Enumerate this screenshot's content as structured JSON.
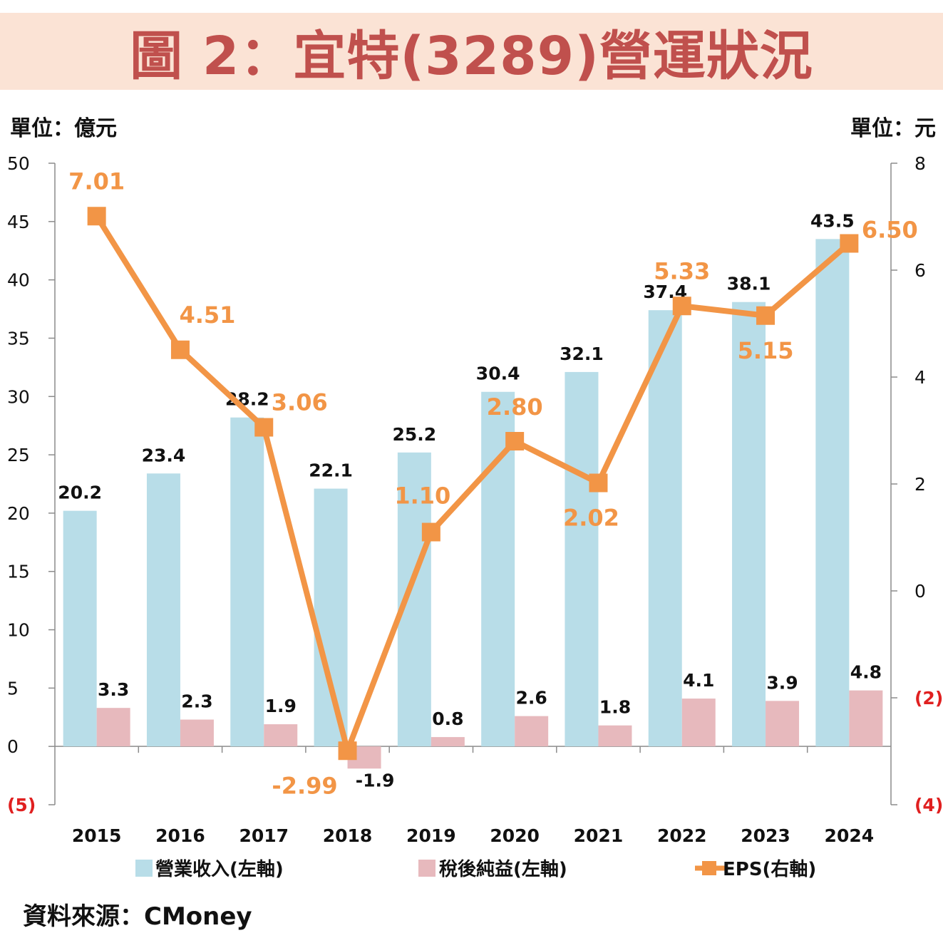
{
  "title": "圖 2：宜特(3289)營運狀況",
  "left_unit": "單位：億元",
  "right_unit": "單位：元",
  "source": "資料來源：CMoney",
  "colors": {
    "revenue": "#b8dde8",
    "net_income": "#e7b9bd",
    "eps": "#f29546",
    "negative_tick": "#e02020",
    "title": "#c0504d",
    "banner": "#fbe3d5"
  },
  "chart_data": {
    "type": "bar",
    "categories": [
      "2015",
      "2016",
      "2017",
      "2018",
      "2019",
      "2020",
      "2021",
      "2022",
      "2023",
      "2024"
    ],
    "series": [
      {
        "name": "營業收入(左軸)",
        "type": "bar",
        "axis": "left",
        "values": [
          20.2,
          23.4,
          28.2,
          22.1,
          25.2,
          30.4,
          32.1,
          37.4,
          38.1,
          43.5
        ]
      },
      {
        "name": "稅後純益(左軸)",
        "type": "bar",
        "axis": "left",
        "values": [
          3.3,
          2.3,
          1.9,
          -1.9,
          0.8,
          2.6,
          1.8,
          4.1,
          3.9,
          4.8
        ]
      },
      {
        "name": "EPS(右軸)",
        "type": "line",
        "axis": "right",
        "values": [
          7.01,
          4.51,
          3.06,
          -2.99,
          1.1,
          2.8,
          2.02,
          5.33,
          5.15,
          6.5
        ]
      }
    ],
    "bar_labels": {
      "revenue": [
        "20.2",
        "23.4",
        "28.2",
        "22.1",
        "25.2",
        "30.4",
        "32.1",
        "37.4",
        "38.1",
        "43.5"
      ],
      "net_income": [
        "3.3",
        "2.3",
        "1.9",
        "-1.9",
        "0.8",
        "2.6",
        "1.8",
        "4.1",
        "3.9",
        "4.8"
      ],
      "eps": [
        "7.01",
        "4.51",
        "3.06",
        "-2.99",
        "1.10",
        "2.80",
        "2.02",
        "5.33",
        "5.15",
        "6.50"
      ]
    },
    "y_left": {
      "range": [
        -5,
        50
      ],
      "ticks": [
        50,
        45,
        40,
        35,
        30,
        25,
        20,
        15,
        10,
        5,
        0,
        -5
      ],
      "tick_labels": [
        "50",
        "45",
        "40",
        "35",
        "30",
        "25",
        "20",
        "15",
        "10",
        "5",
        "0",
        "(5)"
      ]
    },
    "y_right": {
      "range": [
        -4,
        8
      ],
      "ticks": [
        8,
        6,
        4,
        2,
        0,
        -2,
        -4
      ],
      "tick_labels": [
        "8",
        "6",
        "4",
        "2",
        "0",
        "(2)",
        "(4)"
      ]
    },
    "grid": false,
    "legend_position": "bottom"
  }
}
